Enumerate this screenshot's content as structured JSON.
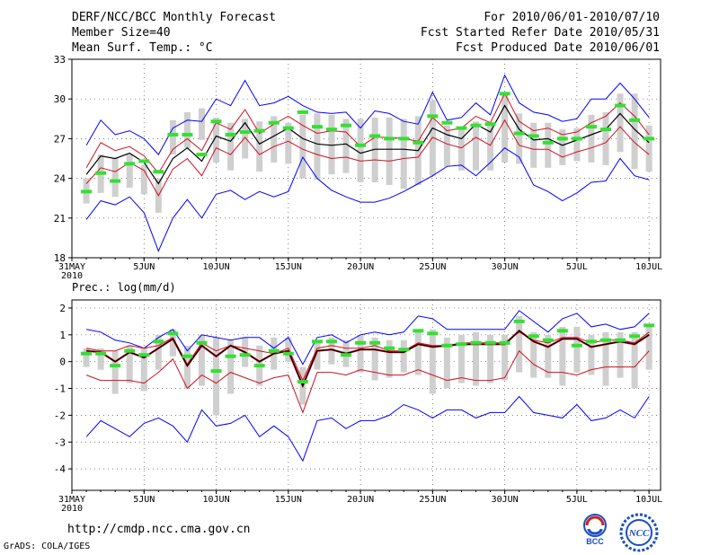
{
  "header": {
    "title": "DERF/NCC/BCC Monthly Forecast",
    "member_size": "Member Size=40",
    "variable": "Mean Surf. Temp.: °C",
    "for_period": "For 2010/06/01-2010/07/10",
    "started": "Fcst Started Refer Date 2010/05/31",
    "produced": "Fcst Produced Date 2010/06/01"
  },
  "footer": {
    "url": "http://cmdp.ncc.cma.gov.cn",
    "grads": "GrADS: COLA/IGES",
    "logo_bcc": "BCC",
    "logo_ncc": "NCC"
  },
  "colors": {
    "max_min": "#0000ff",
    "pct": "#d01020",
    "mean": "#000000",
    "bar": "#cfcfcf",
    "obs": "#33e033",
    "grid": "#555555"
  },
  "chart_data": [
    {
      "type": "box-line",
      "title": "",
      "ylabel": "Mean Surf. Temp.: °C",
      "ylim": [
        18,
        33
      ],
      "yticks": [
        18,
        21,
        24,
        27,
        30,
        33
      ],
      "x_ticks": [
        {
          "day": 1,
          "label": "31MAY",
          "label2": "2010"
        },
        {
          "day": 6,
          "label": "5JUN"
        },
        {
          "day": 11,
          "label": "10JUN"
        },
        {
          "day": 16,
          "label": "15JUN"
        },
        {
          "day": 21,
          "label": "20JUN"
        },
        {
          "day": 26,
          "label": "25JUN"
        },
        {
          "day": 31,
          "label": "30JUN"
        },
        {
          "day": 36,
          "label": "5JUL"
        },
        {
          "day": 41,
          "label": "10JUL"
        }
      ],
      "days": [
        2,
        3,
        4,
        5,
        6,
        7,
        8,
        9,
        10,
        11,
        12,
        13,
        14,
        15,
        16,
        17,
        18,
        19,
        20,
        21,
        22,
        23,
        24,
        25,
        26,
        27,
        28,
        29,
        30,
        31,
        32,
        33,
        34,
        35,
        36,
        37,
        38,
        39,
        40,
        41
      ],
      "max": [
        26.5,
        28.4,
        27.3,
        27.6,
        27.0,
        25.8,
        27.8,
        28.4,
        28.3,
        30.0,
        29.5,
        31.4,
        29.5,
        29.7,
        30.2,
        29.5,
        29.0,
        28.9,
        29.0,
        27.8,
        29.1,
        28.9,
        28.3,
        28.1,
        30.5,
        28.4,
        28.6,
        29.7,
        28.8,
        31.8,
        29.7,
        29.0,
        28.8,
        28.3,
        28.5,
        30.0,
        30.0,
        31.2,
        30.0,
        28.6
      ],
      "pct90": [
        24.8,
        26.7,
        26.1,
        26.4,
        25.7,
        24.4,
        26.2,
        27.0,
        26.1,
        28.2,
        27.7,
        29.2,
        27.4,
        28.1,
        28.7,
        28.0,
        27.4,
        27.6,
        27.5,
        26.4,
        27.1,
        27.1,
        27.0,
        26.8,
        28.6,
        27.6,
        27.8,
        28.7,
        28.2,
        30.4,
        28.3,
        27.6,
        27.8,
        27.3,
        27.5,
        28.2,
        28.7,
        29.7,
        28.7,
        27.3
      ],
      "mean": [
        24.3,
        25.7,
        25.5,
        25.9,
        25.2,
        23.6,
        25.5,
        26.3,
        25.3,
        27.2,
        26.8,
        28.2,
        26.6,
        27.2,
        27.8,
        27.0,
        26.6,
        26.5,
        26.6,
        25.9,
        26.2,
        26.2,
        26.2,
        26.1,
        27.8,
        27.3,
        27.0,
        28.1,
        27.5,
        29.5,
        27.7,
        26.9,
        27.0,
        26.5,
        26.9,
        27.3,
        27.7,
        28.9,
        27.7,
        26.7
      ],
      "pct10": [
        23.6,
        24.8,
        24.5,
        25.2,
        24.6,
        22.7,
        24.7,
        25.5,
        24.2,
        26.3,
        25.8,
        27.1,
        25.8,
        26.4,
        26.8,
        26.2,
        25.8,
        25.5,
        25.6,
        25.3,
        25.4,
        25.3,
        25.5,
        25.6,
        27.1,
        26.6,
        26.3,
        27.1,
        26.5,
        28.4,
        26.5,
        26.2,
        26.2,
        25.6,
        26.0,
        26.3,
        26.7,
        27.9,
        26.7,
        25.8
      ],
      "min": [
        20.9,
        22.3,
        22.0,
        22.6,
        21.4,
        18.5,
        21.0,
        22.4,
        21.0,
        22.8,
        23.1,
        22.4,
        23.0,
        22.6,
        23.0,
        25.6,
        24.0,
        23.1,
        22.6,
        22.2,
        22.2,
        22.5,
        23.0,
        23.6,
        24.2,
        24.9,
        25.0,
        24.2,
        25.2,
        26.3,
        25.6,
        23.5,
        23.0,
        22.3,
        22.9,
        23.7,
        23.8,
        25.5,
        24.2,
        23.9
      ],
      "bar_hi": [
        24.0,
        25.8,
        25.5,
        25.8,
        25.0,
        24.0,
        28.4,
        29.0,
        29.3,
        28.6,
        28.2,
        28.5,
        28.3,
        28.7,
        28.2,
        28.8,
        28.9,
        28.8,
        28.5,
        28.5,
        28.6,
        28.6,
        28.5,
        28.7,
        29.9,
        28.0,
        27.7,
        28.3,
        28.2,
        30.5,
        28.9,
        28.2,
        28.2,
        27.7,
        27.8,
        28.8,
        29.0,
        30.4,
        30.4,
        28.0
      ],
      "bar_lo": [
        22.1,
        22.9,
        22.6,
        23.3,
        22.8,
        21.4,
        25.8,
        26.3,
        26.9,
        25.2,
        24.6,
        25.5,
        24.5,
        25.2,
        25.1,
        24.0,
        23.9,
        24.3,
        24.4,
        23.7,
        23.7,
        23.5,
        23.2,
        23.5,
        24.2,
        24.9,
        24.6,
        24.6,
        24.6,
        25.2,
        25.1,
        24.8,
        24.8,
        25.0,
        25.3,
        25.2,
        25.0,
        26.0,
        24.7,
        24.5
      ],
      "obs": [
        23.0,
        24.4,
        23.8,
        25.1,
        25.3,
        24.5,
        27.3,
        27.3,
        25.8,
        28.3,
        27.3,
        27.5,
        27.6,
        28.2,
        27.8,
        29.0,
        27.9,
        27.7,
        28.0,
        26.5,
        27.2,
        27.0,
        27.0,
        26.7,
        28.7,
        28.2,
        27.8,
        28.0,
        28.1,
        30.4,
        27.4,
        27.2,
        26.7,
        27.0,
        27.0,
        27.9,
        27.7,
        29.5,
        28.4,
        27.0
      ]
    },
    {
      "type": "box-line",
      "title": "Prec.: log(mm/d)",
      "ylabel": "Prec.: log(mm/d)",
      "ylim": [
        -4.8,
        2.3
      ],
      "yticks": [
        -4,
        -3,
        -2,
        -1,
        0,
        1,
        2
      ],
      "x_ticks": [
        {
          "day": 1,
          "label": "31MAY",
          "label2": "2010"
        },
        {
          "day": 6,
          "label": "5JUN"
        },
        {
          "day": 11,
          "label": "10JUN"
        },
        {
          "day": 16,
          "label": "15JUN"
        },
        {
          "day": 21,
          "label": "20JUN"
        },
        {
          "day": 26,
          "label": "25JUN"
        },
        {
          "day": 31,
          "label": "30JUN"
        },
        {
          "day": 36,
          "label": "5JUL"
        },
        {
          "day": 41,
          "label": "10JUL"
        }
      ],
      "days": [
        2,
        3,
        4,
        5,
        6,
        7,
        8,
        9,
        10,
        11,
        12,
        13,
        14,
        15,
        16,
        17,
        18,
        19,
        20,
        21,
        22,
        23,
        24,
        25,
        26,
        27,
        28,
        29,
        30,
        31,
        32,
        33,
        34,
        35,
        36,
        37,
        38,
        39,
        40,
        41
      ],
      "max": [
        1.2,
        1.1,
        0.8,
        0.7,
        0.5,
        0.9,
        1.2,
        0.4,
        1.0,
        0.9,
        0.8,
        0.9,
        0.9,
        0.5,
        0.9,
        -0.1,
        0.9,
        1.0,
        0.7,
        1.0,
        1.1,
        1.0,
        1.1,
        1.7,
        1.6,
        1.2,
        1.2,
        1.2,
        1.2,
        1.2,
        1.9,
        1.5,
        1.1,
        1.6,
        1.8,
        1.3,
        1.4,
        1.2,
        1.3,
        1.8
      ],
      "pct90": [
        0.5,
        0.4,
        0.4,
        0.6,
        0.5,
        0.6,
        0.9,
        -0.1,
        0.7,
        0.4,
        0.6,
        0.5,
        0.4,
        0.3,
        0.5,
        -0.7,
        0.5,
        0.6,
        0.5,
        0.5,
        0.6,
        0.4,
        0.4,
        0.7,
        0.6,
        0.6,
        0.7,
        0.7,
        0.7,
        0.7,
        1.1,
        0.8,
        0.7,
        0.9,
        0.9,
        0.7,
        0.8,
        0.8,
        0.7,
        1.1
      ],
      "mean": [
        0.4,
        0.35,
        0.0,
        0.35,
        0.15,
        0.5,
        0.85,
        -0.15,
        0.6,
        0.2,
        0.6,
        0.35,
        0.0,
        0.3,
        0.4,
        -0.9,
        0.4,
        0.45,
        0.3,
        0.45,
        0.45,
        0.35,
        0.35,
        0.65,
        0.55,
        0.6,
        0.65,
        0.65,
        0.65,
        0.65,
        1.15,
        0.75,
        0.55,
        0.85,
        0.85,
        0.55,
        0.65,
        0.75,
        0.65,
        1.0
      ],
      "pct10": [
        -0.5,
        -0.7,
        -0.7,
        -0.7,
        -0.8,
        -0.4,
        0.1,
        -1.0,
        -0.5,
        -0.8,
        -0.4,
        -0.6,
        -0.8,
        -0.6,
        -0.5,
        -1.9,
        -0.4,
        -0.4,
        -0.5,
        -0.3,
        -0.4,
        -0.5,
        -0.5,
        -0.3,
        -0.5,
        -0.7,
        -0.6,
        -0.7,
        -0.7,
        -0.6,
        0.4,
        -0.1,
        -0.4,
        -0.4,
        -0.5,
        -0.3,
        -0.2,
        -0.2,
        -0.2,
        0.4
      ],
      "min": [
        -2.8,
        -2.2,
        -2.5,
        -2.8,
        -2.3,
        -2.1,
        -2.4,
        -3.0,
        -1.8,
        -2.4,
        -2.3,
        -2.0,
        -2.8,
        -2.4,
        -2.8,
        -3.7,
        -2.2,
        -2.1,
        -2.5,
        -2.2,
        -2.2,
        -2.0,
        -1.6,
        -1.8,
        -2.1,
        -1.8,
        -1.8,
        -2.1,
        -1.9,
        -1.9,
        -1.3,
        -1.9,
        -2.0,
        -2.1,
        -1.6,
        -2.2,
        -2.1,
        -1.8,
        -2.1,
        -1.3
      ],
      "bar_hi": [
        0.5,
        0.5,
        0.4,
        0.6,
        0.5,
        1.0,
        1.2,
        0.6,
        1.0,
        0.9,
        0.8,
        0.9,
        0.6,
        0.9,
        0.9,
        -0.2,
        0.8,
        0.9,
        0.8,
        1.0,
        0.9,
        0.8,
        0.8,
        1.2,
        1.2,
        0.9,
        1.0,
        1.1,
        1.0,
        1.0,
        1.7,
        1.1,
        1.0,
        1.3,
        1.3,
        1.0,
        1.1,
        1.1,
        1.1,
        1.4
      ],
      "bar_lo": [
        -0.2,
        -0.3,
        -1.2,
        -0.8,
        -1.1,
        -0.3,
        0.2,
        -1.0,
        -0.9,
        -2.0,
        -1.2,
        -0.2,
        -0.9,
        -0.3,
        0.0,
        -1.6,
        -0.3,
        -0.1,
        -0.2,
        -0.4,
        -0.7,
        -0.6,
        -0.4,
        -0.5,
        -1.2,
        -1.0,
        -0.8,
        -0.9,
        -0.8,
        -0.7,
        -0.4,
        -0.6,
        -0.6,
        -0.9,
        -0.4,
        -0.5,
        -0.9,
        -0.6,
        -1.0,
        -0.3
      ],
      "obs": [
        0.3,
        0.3,
        -0.15,
        0.4,
        0.25,
        0.75,
        1.05,
        0.2,
        0.7,
        -0.35,
        0.2,
        0.25,
        -0.15,
        0.4,
        0.3,
        -0.75,
        0.75,
        0.75,
        0.25,
        0.7,
        0.7,
        0.5,
        0.45,
        1.15,
        1.05,
        0.6,
        0.65,
        0.7,
        0.7,
        0.7,
        1.5,
        0.95,
        0.8,
        1.15,
        0.6,
        0.75,
        0.8,
        0.8,
        0.95,
        1.35
      ]
    }
  ]
}
